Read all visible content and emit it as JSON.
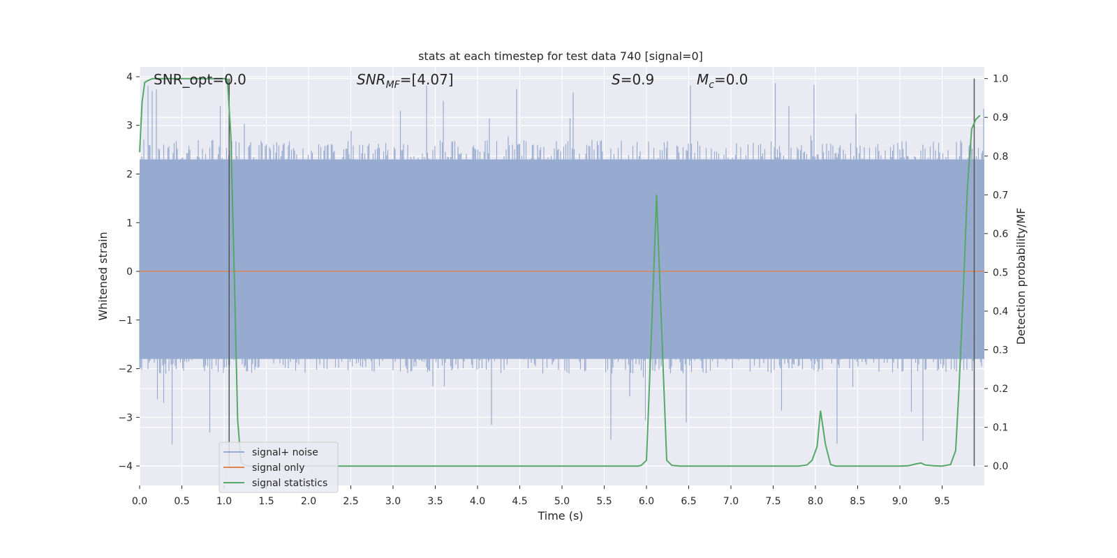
{
  "colors": {
    "plot_bg": "#eaeaf2",
    "grid": "#ffffff",
    "noise": "#97abd0",
    "signal_only": "#dd8452",
    "statistics": "#55a868",
    "vline": "#555555",
    "text": "#262626"
  },
  "chart_data": {
    "type": "line",
    "title": "stats at each timestep for test data 740 [signal=0]",
    "xlabel": "Time (s)",
    "ylabel": "Whitened strain",
    "y2label": "Detection probability/MF",
    "xlim": [
      0.0,
      10.0
    ],
    "ylim": [
      -4.4,
      4.2
    ],
    "y2lim": [
      -0.05,
      1.03
    ],
    "x_ticks": [
      "0.0",
      "0.5",
      "1.0",
      "1.5",
      "2.0",
      "2.5",
      "3.0",
      "3.5",
      "4.0",
      "4.5",
      "5.0",
      "5.5",
      "6.0",
      "6.5",
      "7.0",
      "7.5",
      "8.0",
      "8.5",
      "9.0",
      "9.5"
    ],
    "y_ticks": [
      "4",
      "3",
      "2",
      "1",
      "0",
      "−1",
      "−2",
      "−3",
      "−4"
    ],
    "y2_ticks": [
      "1.0",
      "0.9",
      "0.8",
      "0.7",
      "0.6",
      "0.5",
      "0.4",
      "0.3",
      "0.2",
      "0.1",
      "0.0"
    ],
    "grid": true,
    "annotations": {
      "snr_opt": "SNR_opt=0.0",
      "snr_mf_sym": "SNR",
      "snr_mf_sub": "MF",
      "snr_mf_val": "=[4.07]",
      "s_sym": "S",
      "s_val": "=0.9",
      "mc_sym": "M",
      "mc_sub": "c",
      "mc_val": "=0.0"
    },
    "legend": {
      "placement": "lower-left",
      "entries": [
        "signal+ noise",
        "signal only",
        "signal statistics"
      ]
    },
    "noise_band": {
      "typical_low": -1.8,
      "typical_high": 2.3,
      "min": -3.6,
      "max": 3.9
    },
    "signal_only": {
      "x": [
        0.0,
        10.0
      ],
      "y": [
        0.0,
        0.0
      ]
    },
    "statistics": {
      "x": [
        0.0,
        0.03,
        0.06,
        0.1,
        0.15,
        0.2,
        0.4,
        0.6,
        0.8,
        1.0,
        1.04,
        1.08,
        1.12,
        1.16,
        1.2,
        1.25,
        1.3,
        1.5,
        2.0,
        3.0,
        4.0,
        5.0,
        5.9,
        5.94,
        6.0,
        6.06,
        6.12,
        6.18,
        6.24,
        6.3,
        6.4,
        7.0,
        7.8,
        7.9,
        7.96,
        8.02,
        8.06,
        8.12,
        8.18,
        8.24,
        8.3,
        8.5,
        9.0,
        9.1,
        9.2,
        9.25,
        9.3,
        9.4,
        9.5,
        9.6,
        9.66,
        9.7,
        9.75,
        9.8,
        9.85,
        9.9,
        9.95
      ],
      "y": [
        0.81,
        0.94,
        0.99,
        0.995,
        1.0,
        1.0,
        1.0,
        1.0,
        1.0,
        1.0,
        0.998,
        0.85,
        0.5,
        0.12,
        0.01,
        0.002,
        0.0,
        0.0,
        0.0,
        0.0,
        0.0,
        0.0,
        0.0,
        0.002,
        0.015,
        0.35,
        0.7,
        0.35,
        0.015,
        0.002,
        0.0,
        0.0,
        0.0,
        0.003,
        0.015,
        0.05,
        0.143,
        0.055,
        0.004,
        0.0,
        0.0,
        0.0,
        0.0,
        0.001,
        0.006,
        0.008,
        0.003,
        0.001,
        0.0,
        0.004,
        0.04,
        0.2,
        0.45,
        0.72,
        0.87,
        0.895,
        0.905
      ]
    },
    "vlines": [
      {
        "x": 1.06,
        "y2_top": 1.0,
        "y2_bottom": 0.0
      },
      {
        "x": 9.88,
        "y2_top": 1.0,
        "y2_bottom": 0.0
      }
    ]
  }
}
